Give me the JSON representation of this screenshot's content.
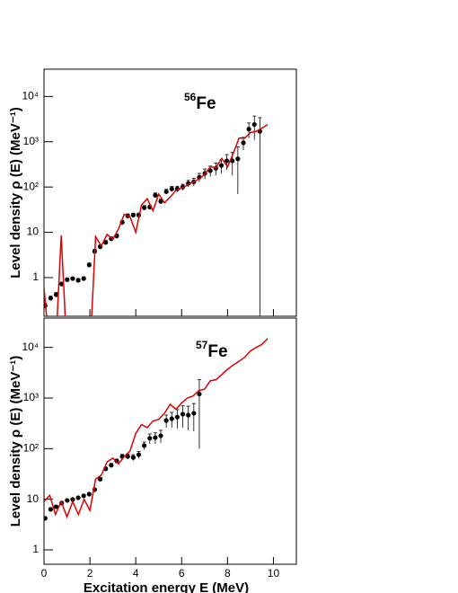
{
  "chart_data": [
    {
      "type": "line",
      "log_y": true,
      "show_xtick_labels": false,
      "annotation": {
        "mass": "56",
        "element": "Fe"
      },
      "ylabel": "Level density ρ (E) (MeV⁻¹)",
      "xlim": [
        0,
        11
      ],
      "xticks": [
        0,
        2,
        4,
        6,
        8,
        10
      ],
      "ylim": [
        0.14,
        40000
      ],
      "yticks": [
        1,
        10,
        {
          "value": 100,
          "label": "10²"
        },
        {
          "value": 1000,
          "label": "10³"
        },
        {
          "value": 10000,
          "label": "10⁴"
        }
      ],
      "series": [
        {
          "type": "scatter",
          "color": "#000000",
          "x": [
            0.05,
            0.29,
            0.53,
            0.77,
            1.01,
            1.25,
            1.49,
            1.73,
            1.97,
            2.21,
            2.45,
            2.69,
            2.93,
            3.17,
            3.41,
            3.65,
            3.89,
            4.13,
            4.37,
            4.61,
            4.85,
            5.09,
            5.33,
            5.57,
            5.81,
            6.05,
            6.29,
            6.53,
            6.77,
            7.01,
            7.25,
            7.49,
            7.73,
            7.97,
            8.21,
            8.45,
            8.69,
            8.93,
            9.17,
            9.41
          ],
          "values": [
            0.24,
            0.35,
            0.42,
            0.72,
            0.9,
            0.95,
            0.87,
            0.95,
            1.9,
            3.8,
            4.8,
            6,
            7.2,
            8.3,
            16.6,
            23,
            24,
            24,
            35,
            36,
            66,
            48,
            79,
            91,
            91,
            100,
            120,
            130,
            165,
            200,
            230,
            260,
            300,
            380,
            380,
            420,
            950,
            1900,
            2400,
            1700
          ],
          "errors": [
            0.03,
            0.04,
            0.05,
            0.07,
            0.08,
            0.08,
            0.08,
            0.09,
            0.2,
            0.4,
            0.5,
            0.6,
            0.7,
            0.8,
            1.5,
            2.5,
            2.5,
            2.5,
            4,
            4,
            8,
            6,
            10,
            12,
            13,
            15,
            20,
            25,
            35,
            50,
            60,
            80,
            100,
            140,
            200,
            350,
            300,
            700,
            1300,
            1700
          ]
        },
        {
          "type": "line",
          "color": "#e00000",
          "x": [
            0,
            0.25,
            0.5,
            0.75,
            1,
            1.25,
            1.5,
            1.75,
            2,
            2.25,
            2.5,
            2.75,
            3,
            3.25,
            3.5,
            3.75,
            4,
            4.25,
            4.5,
            4.75,
            5,
            5.25,
            5.5,
            5.75,
            6,
            6.25,
            6.5,
            6.75,
            7,
            7.25,
            7.5,
            7.75,
            8,
            8.25,
            8.5,
            8.75,
            9,
            9.25,
            9.5,
            9.75
          ],
          "values": [
            0.6,
            0,
            0,
            8.5,
            0,
            0,
            0,
            0,
            0,
            8,
            5,
            9,
            7,
            12,
            25,
            22,
            10,
            40,
            55,
            30,
            70,
            45,
            60,
            85,
            95,
            110,
            130,
            150,
            190,
            280,
            270,
            430,
            280,
            550,
            1200,
            1200,
            1600,
            1700,
            2000,
            2400
          ]
        }
      ]
    },
    {
      "type": "line",
      "log_y": true,
      "show_xtick_labels": true,
      "annotation": {
        "mass": "57",
        "element": "Fe"
      },
      "ylabel": "Level density ρ (E) (MeV⁻¹)",
      "xlabel": "Excitation energy E (MeV)",
      "xlim": [
        0,
        11
      ],
      "xticks": [
        0,
        2,
        4,
        6,
        8,
        10
      ],
      "ylim": [
        0.52,
        38000
      ],
      "yticks": [
        1,
        10,
        {
          "value": 100,
          "label": "10²"
        },
        {
          "value": 1000,
          "label": "10³"
        },
        {
          "value": 10000,
          "label": "10⁴"
        }
      ],
      "series": [
        {
          "type": "scatter",
          "color": "#000000",
          "x": [
            0.05,
            0.29,
            0.53,
            0.77,
            1.01,
            1.25,
            1.49,
            1.73,
            1.97,
            2.21,
            2.45,
            2.69,
            2.93,
            3.17,
            3.41,
            3.65,
            3.89,
            4.13,
            4.37,
            4.61,
            4.85,
            5.09,
            5.33,
            5.57,
            5.81,
            6.05,
            6.29,
            6.53,
            6.77
          ],
          "values": [
            4.2,
            6.3,
            7.1,
            8.4,
            9.5,
            9.9,
            10.7,
            11.7,
            12.6,
            15.5,
            25,
            40,
            47,
            57,
            70,
            70,
            67,
            76,
            115,
            160,
            165,
            180,
            360,
            390,
            420,
            480,
            460,
            500,
            1200
          ],
          "errors": [
            0.3,
            0.5,
            0.5,
            0.6,
            0.6,
            0.6,
            0.7,
            0.7,
            0.8,
            1,
            2,
            3,
            4,
            5,
            7,
            8,
            9,
            12,
            20,
            35,
            40,
            50,
            100,
            130,
            170,
            220,
            230,
            280,
            1100
          ]
        },
        {
          "type": "line",
          "color": "#e00000",
          "x": [
            0,
            0.25,
            0.5,
            0.75,
            1,
            1.25,
            1.5,
            1.75,
            2,
            2.25,
            2.5,
            2.75,
            3,
            3.25,
            3.5,
            3.75,
            4,
            4.25,
            4.5,
            4.75,
            5,
            5.25,
            5.5,
            5.75,
            6,
            6.25,
            6.5,
            6.75,
            7,
            7.25,
            7.5,
            7.75,
            8,
            8.25,
            8.5,
            8.75,
            9,
            9.25,
            9.5,
            9.75
          ],
          "values": [
            9,
            12,
            5,
            9,
            4.5,
            9,
            5,
            10,
            6,
            25,
            30,
            55,
            65,
            50,
            70,
            90,
            200,
            300,
            260,
            350,
            380,
            500,
            750,
            600,
            800,
            1000,
            1100,
            1400,
            1500,
            2200,
            2300,
            2900,
            3700,
            4500,
            5300,
            6400,
            8500,
            10000,
            11500,
            15000
          ]
        }
      ]
    }
  ]
}
